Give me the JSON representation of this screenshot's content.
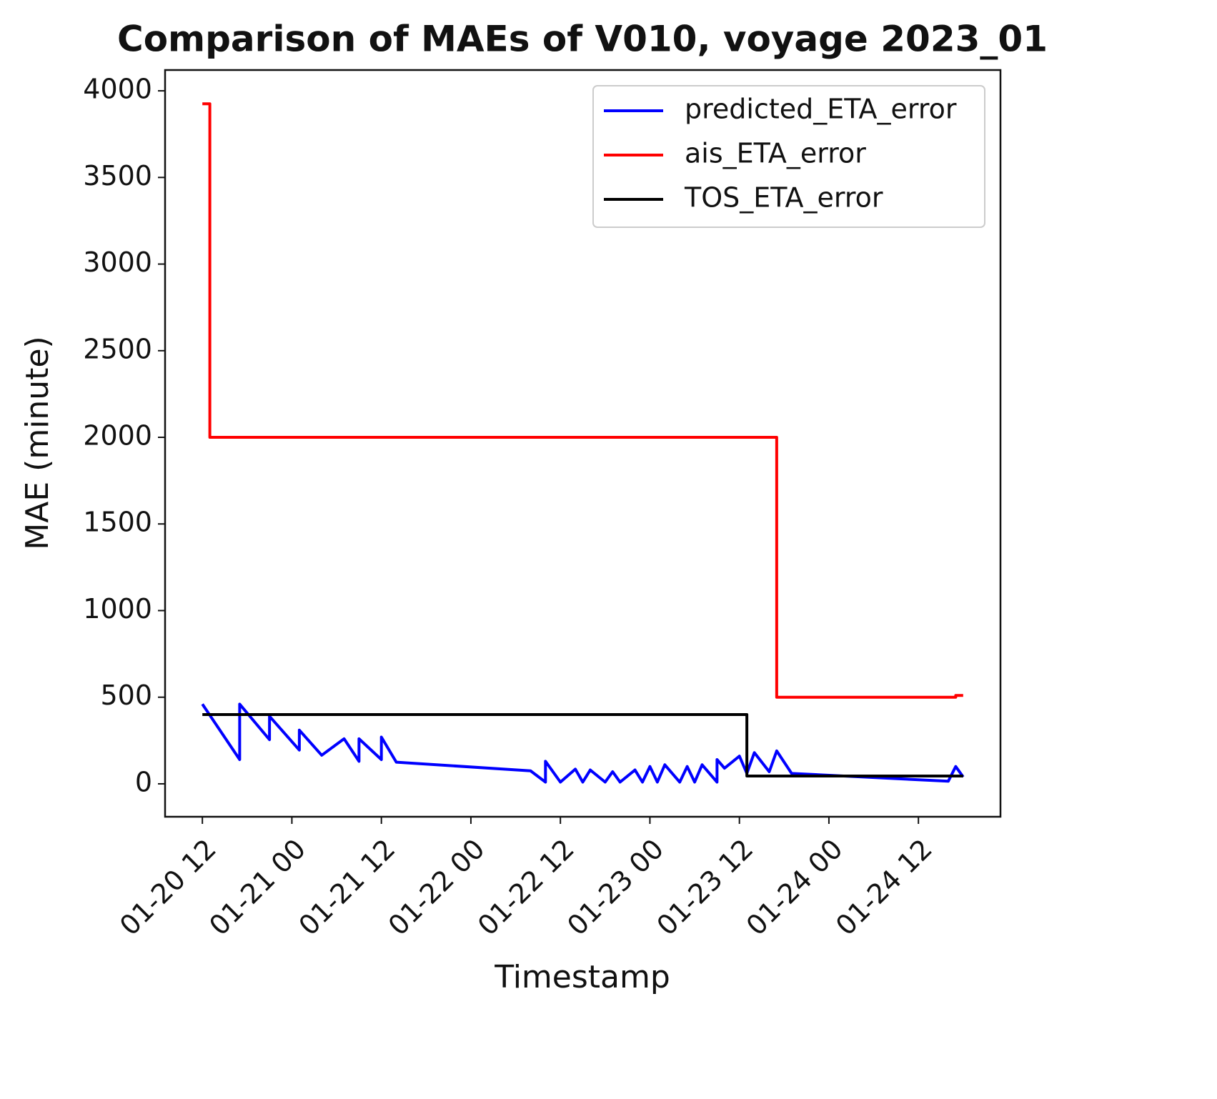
{
  "chart_data": {
    "type": "line",
    "title": "Comparison of MAEs of V010, voyage 2023_01",
    "x_label": "Timestamp",
    "y_label": "MAE (minute)",
    "xlim": [
      "01-20 07",
      "01-24 23"
    ],
    "xticks": [
      "01-20 12",
      "01-21 00",
      "01-21 12",
      "01-22 00",
      "01-22 12",
      "01-23 00",
      "01-23 12",
      "01-24 00",
      "01-24 12"
    ],
    "ylim": [
      -190,
      4120
    ],
    "yticks": [
      0,
      500,
      1000,
      1500,
      2000,
      2500,
      3000,
      3500,
      4000
    ],
    "grid": false,
    "legend": "upper right",
    "series": [
      {
        "name": "predicted_ETA_error",
        "color": "#0000ff",
        "x": [
          "01-20 12",
          "01-20 17",
          "01-20 17",
          "01-20 21",
          "01-20 21",
          "01-21 01",
          "01-21 01",
          "01-21 04",
          "01-21 07",
          "01-21 09",
          "01-21 09",
          "01-21 12",
          "01-21 12",
          "01-21 14",
          "01-22 08",
          "01-22 10",
          "01-22 10",
          "01-22 12",
          "01-22 14",
          "01-22 15",
          "01-22 16",
          "01-22 18",
          "01-22 19",
          "01-22 20",
          "01-22 22",
          "01-22 23",
          "01-23 00",
          "01-23 01",
          "01-23 02",
          "01-23 04",
          "01-23 05",
          "01-23 06",
          "01-23 07",
          "01-23 09",
          "01-23 09",
          "01-23 10",
          "01-23 12",
          "01-23 13",
          "01-23 14",
          "01-23 16",
          "01-23 17",
          "01-23 19",
          "01-24 16",
          "01-24 17",
          "01-24 18"
        ],
        "values": [
          460,
          140,
          460,
          255,
          390,
          195,
          310,
          165,
          260,
          130,
          260,
          140,
          270,
          125,
          75,
          10,
          130,
          10,
          85,
          10,
          80,
          10,
          70,
          10,
          80,
          10,
          100,
          10,
          110,
          10,
          100,
          10,
          110,
          10,
          140,
          90,
          160,
          60,
          180,
          70,
          190,
          60,
          15,
          100,
          40
        ]
      },
      {
        "name": "ais_ETA_error",
        "color": "#ff0000",
        "x": [
          "01-20 12",
          "01-20 13",
          "01-20 13",
          "01-23 17",
          "01-23 17",
          "01-24 17",
          "01-24 17",
          "01-24 18"
        ],
        "values": [
          3925,
          3925,
          2000,
          2000,
          500,
          500,
          510,
          510
        ]
      },
      {
        "name": "TOS_ETA_error",
        "color": "#000000",
        "x": [
          "01-20 12",
          "01-23 13",
          "01-23 13",
          "01-24 18"
        ],
        "values": [
          400,
          400,
          45,
          45
        ]
      }
    ]
  }
}
